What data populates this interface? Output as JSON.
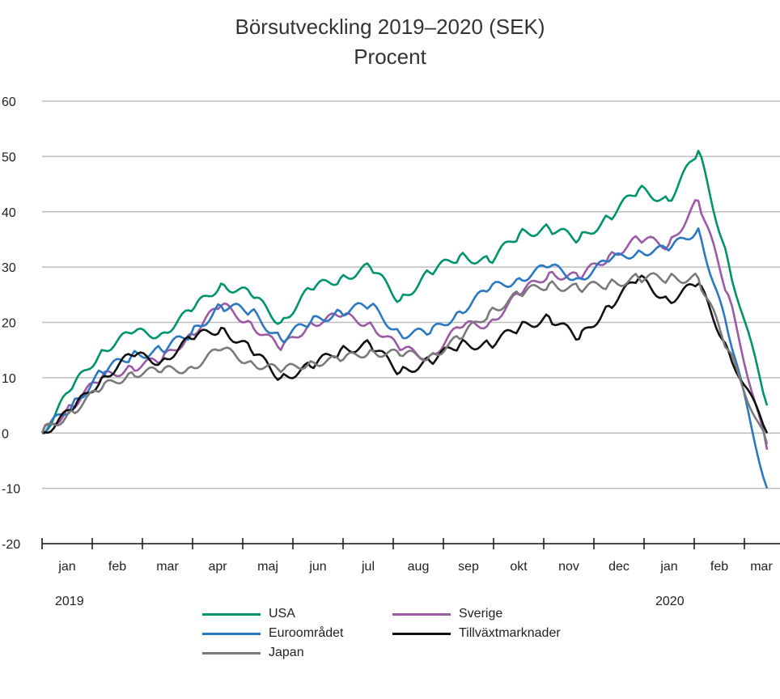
{
  "chart_data": {
    "type": "line",
    "title": "Börsutveckling 2019–2020 (SEK)",
    "subtitle": "Procent",
    "ylim": [
      -20,
      60
    ],
    "yticks": [
      60,
      50,
      40,
      30,
      20,
      10,
      0,
      -10,
      -20
    ],
    "month_labels": [
      "jan",
      "feb",
      "mar",
      "apr",
      "maj",
      "jun",
      "jul",
      "aug",
      "sep",
      "okt",
      "nov",
      "dec",
      "jan",
      "feb",
      "mar"
    ],
    "year_labels": [
      "2019",
      "2020"
    ],
    "grid": true,
    "legend_position": "bottom",
    "series": [
      {
        "name": "USA",
        "color": "#00936f",
        "values": [
          0,
          8,
          15,
          18,
          18,
          22,
          27,
          25,
          20,
          26,
          28,
          30,
          24,
          29,
          32,
          31,
          36,
          37,
          35,
          39,
          44,
          42,
          51,
          31,
          5
        ]
      },
      {
        "name": "Sverige",
        "color": "#9b59a6",
        "values": [
          0,
          5,
          10,
          12,
          13,
          18,
          23,
          20,
          15,
          20,
          21,
          20,
          15,
          14,
          19,
          20,
          25,
          29,
          28,
          32,
          35,
          34,
          42,
          25,
          -3
        ]
      },
      {
        "name": "Euroområdet",
        "color": "#2b78c2",
        "values": [
          0,
          5,
          11,
          14,
          15,
          18,
          23,
          22,
          17,
          20,
          22,
          23,
          18,
          18,
          22,
          26,
          28,
          30,
          28,
          31,
          33,
          33,
          37,
          18,
          -10
        ]
      },
      {
        "name": "Tillväxtmarknader",
        "color": "#111111",
        "values": [
          0,
          4,
          10,
          14,
          13,
          17,
          19,
          15,
          10,
          12,
          15,
          16,
          11,
          13,
          16,
          16,
          19,
          21,
          17,
          23,
          28,
          24,
          27,
          15,
          0
        ]
      },
      {
        "name": "Japan",
        "color": "#7a7a7a",
        "values": [
          0,
          4,
          8,
          11,
          11,
          12,
          15,
          13,
          11,
          13,
          13,
          15,
          14,
          14,
          17,
          22,
          25,
          27,
          26,
          27,
          28,
          28,
          28,
          15,
          -2
        ]
      }
    ]
  }
}
